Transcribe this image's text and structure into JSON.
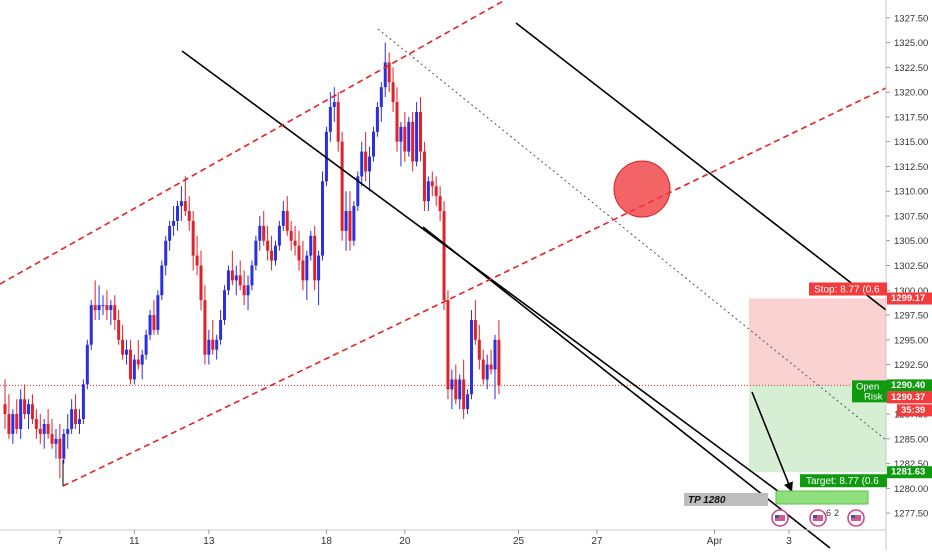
{
  "chart_data": {
    "type": "candlestick",
    "instrument_hint": "XAUUSD",
    "ylim": [
      1276.0,
      1329.0
    ],
    "y_ticks": [
      1277.5,
      1280.0,
      1282.5,
      1285.0,
      1287.5,
      1290.0,
      1292.5,
      1295.0,
      1297.5,
      1300.0,
      1302.5,
      1305.0,
      1307.5,
      1310.0,
      1312.5,
      1315.0,
      1317.5,
      1320.0,
      1322.5,
      1325.0,
      1327.5
    ],
    "y_tick_labels": [
      "1277.50",
      "1280.00",
      "1282.50",
      "1285.00",
      "1287.50",
      "1290.00",
      "1292.50",
      "1295.00",
      "1297.50",
      "1300.00",
      "1302.50",
      "1305.00",
      "1307.50",
      "1310.00",
      "1312.50",
      "1315.00",
      "1317.50",
      "1320.00",
      "1322.50",
      "1325.00",
      "1327.50"
    ],
    "x_labels": [
      {
        "index": 14,
        "label": "7"
      },
      {
        "index": 33,
        "label": "11"
      },
      {
        "index": 52,
        "label": "13"
      },
      {
        "index": 82,
        "label": "18"
      },
      {
        "index": 102,
        "label": "20"
      },
      {
        "index": 131,
        "label": "25"
      },
      {
        "index": 151,
        "label": "27"
      },
      {
        "index": 181,
        "label": "Apr"
      },
      {
        "index": 200,
        "label": "3"
      }
    ],
    "candles": [
      [
        1288.5,
        1291.0,
        1286.0,
        1287.5
      ],
      [
        1287.5,
        1289.5,
        1285.0,
        1285.5
      ],
      [
        1285.5,
        1288.0,
        1284.5,
        1287.5
      ],
      [
        1287.5,
        1289.0,
        1285.5,
        1286.0
      ],
      [
        1286.0,
        1290.0,
        1285.0,
        1289.0
      ],
      [
        1289.0,
        1290.5,
        1287.0,
        1287.5
      ],
      [
        1287.5,
        1289.0,
        1286.0,
        1288.5
      ],
      [
        1288.5,
        1289.5,
        1286.5,
        1287.0
      ],
      [
        1287.0,
        1288.0,
        1285.0,
        1286.0
      ],
      [
        1286.0,
        1287.5,
        1284.5,
        1285.5
      ],
      [
        1285.5,
        1287.0,
        1284.0,
        1286.5
      ],
      [
        1286.5,
        1288.0,
        1285.0,
        1285.5
      ],
      [
        1285.5,
        1287.0,
        1284.0,
        1284.5
      ],
      [
        1284.5,
        1286.0,
        1283.0,
        1285.0
      ],
      [
        1285.0,
        1286.5,
        1281.0,
        1283.0
      ],
      [
        1283.0,
        1286.0,
        1282.5,
        1285.5
      ],
      [
        1285.5,
        1287.5,
        1284.0,
        1286.0
      ],
      [
        1286.0,
        1289.0,
        1285.5,
        1288.0
      ],
      [
        1288.0,
        1289.5,
        1286.0,
        1286.5
      ],
      [
        1286.5,
        1288.0,
        1285.5,
        1287.0
      ],
      [
        1287.0,
        1291.0,
        1286.5,
        1290.5
      ],
      [
        1290.5,
        1295.0,
        1290.0,
        1294.5
      ],
      [
        1294.5,
        1299.0,
        1294.0,
        1298.5
      ],
      [
        1298.5,
        1301.0,
        1297.0,
        1298.0
      ],
      [
        1298.0,
        1300.5,
        1297.0,
        1298.5
      ],
      [
        1298.5,
        1299.5,
        1297.5,
        1298.5
      ],
      [
        1298.5,
        1300.0,
        1297.0,
        1298.0
      ],
      [
        1298.0,
        1299.0,
        1296.5,
        1298.5
      ],
      [
        1298.5,
        1299.5,
        1296.0,
        1297.0
      ],
      [
        1297.0,
        1298.0,
        1294.5,
        1295.0
      ],
      [
        1295.0,
        1296.5,
        1293.0,
        1293.5
      ],
      [
        1293.5,
        1295.0,
        1292.5,
        1294.0
      ],
      [
        1294.0,
        1295.0,
        1290.5,
        1291.0
      ],
      [
        1291.0,
        1293.5,
        1290.5,
        1293.0
      ],
      [
        1293.0,
        1295.0,
        1292.0,
        1292.5
      ],
      [
        1292.5,
        1294.0,
        1291.0,
        1293.5
      ],
      [
        1293.5,
        1296.0,
        1293.0,
        1295.5
      ],
      [
        1295.5,
        1298.0,
        1295.0,
        1297.5
      ],
      [
        1297.5,
        1299.0,
        1295.5,
        1296.0
      ],
      [
        1296.0,
        1300.0,
        1295.5,
        1299.5
      ],
      [
        1299.5,
        1303.0,
        1299.0,
        1302.5
      ],
      [
        1302.5,
        1305.5,
        1301.5,
        1305.0
      ],
      [
        1305.0,
        1307.0,
        1304.0,
        1306.5
      ],
      [
        1306.5,
        1308.5,
        1305.5,
        1307.0
      ],
      [
        1307.0,
        1309.0,
        1306.0,
        1308.5
      ],
      [
        1308.5,
        1310.5,
        1307.0,
        1309.0
      ],
      [
        1309.0,
        1311.5,
        1307.5,
        1308.0
      ],
      [
        1308.0,
        1309.5,
        1306.0,
        1307.0
      ],
      [
        1307.0,
        1308.0,
        1302.0,
        1303.5
      ],
      [
        1303.5,
        1305.5,
        1301.5,
        1302.5
      ],
      [
        1302.5,
        1304.0,
        1298.0,
        1299.0
      ],
      [
        1299.0,
        1300.5,
        1292.5,
        1293.5
      ],
      [
        1293.5,
        1296.0,
        1292.5,
        1295.0
      ],
      [
        1295.0,
        1297.0,
        1293.5,
        1294.0
      ],
      [
        1294.0,
        1295.5,
        1293.0,
        1295.0
      ],
      [
        1295.0,
        1298.0,
        1294.5,
        1297.0
      ],
      [
        1297.0,
        1300.5,
        1296.5,
        1300.0
      ],
      [
        1300.0,
        1302.5,
        1299.5,
        1302.0
      ],
      [
        1302.0,
        1304.0,
        1300.5,
        1301.0
      ],
      [
        1301.0,
        1302.5,
        1299.5,
        1301.5
      ],
      [
        1301.5,
        1303.0,
        1300.0,
        1300.5
      ],
      [
        1300.5,
        1302.0,
        1298.5,
        1299.5
      ],
      [
        1299.5,
        1301.5,
        1298.0,
        1300.5
      ],
      [
        1300.5,
        1303.0,
        1300.0,
        1302.5
      ],
      [
        1302.5,
        1305.5,
        1302.0,
        1305.0
      ],
      [
        1305.0,
        1307.5,
        1304.0,
        1306.5
      ],
      [
        1306.5,
        1308.0,
        1304.5,
        1305.0
      ],
      [
        1305.0,
        1306.5,
        1303.0,
        1304.0
      ],
      [
        1304.0,
        1305.5,
        1302.0,
        1303.0
      ],
      [
        1303.0,
        1305.0,
        1302.5,
        1304.5
      ],
      [
        1304.5,
        1307.0,
        1304.0,
        1306.5
      ],
      [
        1306.5,
        1309.0,
        1306.0,
        1308.0
      ],
      [
        1308.0,
        1309.5,
        1305.5,
        1306.0
      ],
      [
        1306.0,
        1307.0,
        1304.0,
        1305.0
      ],
      [
        1305.0,
        1306.5,
        1303.5,
        1304.5
      ],
      [
        1304.5,
        1306.0,
        1302.0,
        1303.0
      ],
      [
        1303.0,
        1305.0,
        1300.0,
        1301.0
      ],
      [
        1301.0,
        1304.0,
        1299.0,
        1303.5
      ],
      [
        1303.5,
        1306.0,
        1303.0,
        1305.5
      ],
      [
        1305.5,
        1306.5,
        1300.0,
        1301.0
      ],
      [
        1301.0,
        1304.0,
        1298.5,
        1303.5
      ],
      [
        1303.5,
        1312.0,
        1303.0,
        1311.0
      ],
      [
        1311.0,
        1316.5,
        1310.5,
        1316.0
      ],
      [
        1316.0,
        1320.0,
        1315.0,
        1318.5
      ],
      [
        1318.5,
        1320.5,
        1317.0,
        1319.0
      ],
      [
        1319.0,
        1320.0,
        1314.0,
        1315.0
      ],
      [
        1315.0,
        1316.0,
        1305.0,
        1306.0
      ],
      [
        1306.0,
        1310.0,
        1304.0,
        1308.0
      ],
      [
        1308.0,
        1310.0,
        1304.0,
        1305.0
      ],
      [
        1305.0,
        1309.0,
        1304.5,
        1308.5
      ],
      [
        1308.5,
        1312.0,
        1308.0,
        1311.5
      ],
      [
        1311.5,
        1315.0,
        1310.5,
        1314.0
      ],
      [
        1314.0,
        1316.0,
        1311.0,
        1312.0
      ],
      [
        1312.0,
        1314.5,
        1310.0,
        1313.5
      ],
      [
        1313.5,
        1316.5,
        1313.0,
        1316.0
      ],
      [
        1316.0,
        1319.0,
        1315.5,
        1318.5
      ],
      [
        1318.5,
        1321.0,
        1317.0,
        1320.5
      ],
      [
        1320.5,
        1325.0,
        1319.5,
        1323.0
      ],
      [
        1323.0,
        1324.0,
        1320.0,
        1321.0
      ],
      [
        1321.0,
        1322.5,
        1318.0,
        1319.0
      ],
      [
        1319.0,
        1320.5,
        1314.0,
        1315.0
      ],
      [
        1315.0,
        1317.0,
        1312.5,
        1316.5
      ],
      [
        1316.5,
        1318.0,
        1313.0,
        1314.0
      ],
      [
        1314.0,
        1317.5,
        1313.5,
        1317.0
      ],
      [
        1317.0,
        1318.0,
        1312.0,
        1313.0
      ],
      [
        1313.0,
        1319.0,
        1312.5,
        1318.0
      ],
      [
        1318.0,
        1319.5,
        1313.0,
        1314.0
      ],
      [
        1314.0,
        1315.0,
        1308.0,
        1309.0
      ],
      [
        1309.0,
        1311.5,
        1308.0,
        1311.0
      ],
      [
        1311.0,
        1312.0,
        1309.5,
        1310.5
      ],
      [
        1310.5,
        1311.5,
        1308.5,
        1309.5
      ],
      [
        1309.5,
        1310.5,
        1307.0,
        1308.0
      ],
      [
        1308.0,
        1309.0,
        1298.0,
        1299.0
      ],
      [
        1299.0,
        1300.0,
        1289.0,
        1290.0
      ],
      [
        1290.0,
        1292.0,
        1288.0,
        1291.0
      ],
      [
        1291.0,
        1292.5,
        1288.5,
        1289.0
      ],
      [
        1289.0,
        1291.5,
        1288.0,
        1291.0
      ],
      [
        1291.0,
        1293.0,
        1287.0,
        1288.0
      ],
      [
        1288.0,
        1290.0,
        1287.5,
        1289.5
      ],
      [
        1289.5,
        1298.0,
        1289.0,
        1297.0
      ],
      [
        1297.0,
        1299.0,
        1294.5,
        1295.0
      ],
      [
        1295.0,
        1296.5,
        1292.0,
        1293.0
      ],
      [
        1293.0,
        1294.0,
        1290.5,
        1291.0
      ],
      [
        1291.0,
        1293.5,
        1290.0,
        1292.5
      ],
      [
        1292.5,
        1294.0,
        1291.5,
        1292.0
      ],
      [
        1292.0,
        1295.5,
        1289.0,
        1295.0
      ],
      [
        1295.0,
        1297.0,
        1289.5,
        1290.4
      ]
    ],
    "up_color": "#2a2fe0",
    "down_color": "#e0202a",
    "current_price": 1290.4,
    "annotations": {
      "stop_label": "Stop: 8.77 (0.6",
      "stop_price": 1299.17,
      "stop_price_label": "1299.17",
      "target_label": "Target: 8.77 (0.6",
      "target_price": 1281.63,
      "target_price_label": "1281.63",
      "open_label": "Open",
      "risk_label": "Risk",
      "open_price_label": "1290.40",
      "open_price2_label": "1290.37",
      "countdown_label": "35:39",
      "tp_label": "TP 1280",
      "event_count_label": "6",
      "event_count2_label": "2"
    },
    "colors": {
      "stop_zone": "#f9caca",
      "target_zone": "#cfeccc",
      "stop_tag": "#f43a3a",
      "target_tag": "#109a10",
      "channel_black": "#000000",
      "channel_red_dashed": "#e52222",
      "midline_dotted": "#555555",
      "price_line": "#e52222",
      "highlight_circle": "#f0383c",
      "event_icon": "#c94a8a"
    }
  }
}
